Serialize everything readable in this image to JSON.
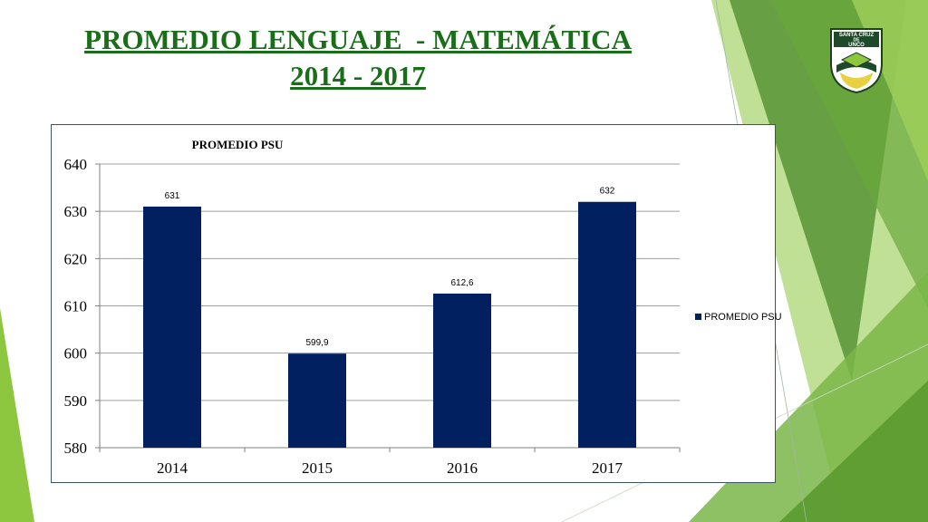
{
  "slide": {
    "title_line1": "PROMEDIO LENGUAJE  - MATEMÁTICA",
    "title_line2": "2014 - 2017"
  },
  "logo": {
    "text_line1": "SANTA CRUZ",
    "text_line2": "DE",
    "text_line3": "UNCO",
    "icon": "school-crest-icon"
  },
  "colors": {
    "title": "#1a6e1a",
    "bar": "#002060",
    "accent_green": "#8dc63f",
    "dark_green": "#4a7a2a"
  },
  "chart_data": {
    "type": "bar",
    "title": "PROMEDIO PSU",
    "categories": [
      "2014",
      "2015",
      "2016",
      "2017"
    ],
    "series": [
      {
        "name": "PROMEDIO PSU",
        "values": [
          631,
          599.9,
          612.6,
          632
        ]
      }
    ],
    "data_labels": [
      "631",
      "599,9",
      "612,6",
      "632"
    ],
    "y_ticks": [
      "580",
      "590",
      "600",
      "610",
      "620",
      "630",
      "640"
    ],
    "ylim": [
      580,
      640
    ],
    "grid": true,
    "legend_position": "right"
  }
}
